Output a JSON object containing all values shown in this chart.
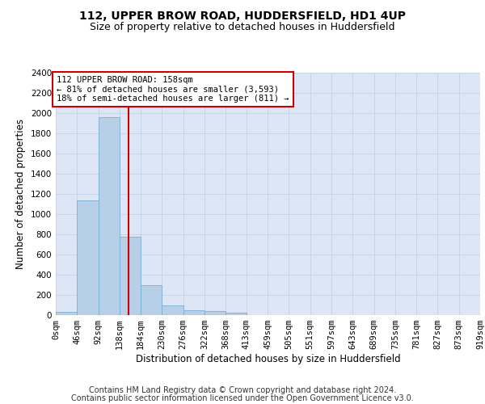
{
  "title": "112, UPPER BROW ROAD, HUDDERSFIELD, HD1 4UP",
  "subtitle": "Size of property relative to detached houses in Huddersfield",
  "xlabel": "Distribution of detached houses by size in Huddersfield",
  "ylabel": "Number of detached properties",
  "bin_edges": [
    0,
    46,
    92,
    138,
    184,
    230,
    276,
    322,
    368,
    413,
    459,
    505,
    551,
    597,
    643,
    689,
    735,
    781,
    827,
    873,
    919
  ],
  "bin_labels": [
    "0sqm",
    "46sqm",
    "92sqm",
    "138sqm",
    "184sqm",
    "230sqm",
    "276sqm",
    "322sqm",
    "368sqm",
    "413sqm",
    "459sqm",
    "505sqm",
    "551sqm",
    "597sqm",
    "643sqm",
    "689sqm",
    "735sqm",
    "781sqm",
    "827sqm",
    "873sqm",
    "919sqm"
  ],
  "bar_heights": [
    35,
    1140,
    1960,
    780,
    300,
    100,
    48,
    40,
    25,
    0,
    0,
    0,
    0,
    0,
    0,
    0,
    0,
    0,
    0,
    0
  ],
  "bar_color": "#b8cfe8",
  "bar_edge_color": "#7aadd4",
  "property_size": 158,
  "red_line_color": "#cc0000",
  "annotation_text": "112 UPPER BROW ROAD: 158sqm\n← 81% of detached houses are smaller (3,593)\n18% of semi-detached houses are larger (811) →",
  "annotation_box_color": "#ffffff",
  "annotation_box_edge": "#cc0000",
  "ylim": [
    0,
    2400
  ],
  "yticks": [
    0,
    200,
    400,
    600,
    800,
    1000,
    1200,
    1400,
    1600,
    1800,
    2000,
    2200,
    2400
  ],
  "grid_color": "#c8d4e8",
  "background_color": "#dce6f5",
  "footer_line1": "Contains HM Land Registry data © Crown copyright and database right 2024.",
  "footer_line2": "Contains public sector information licensed under the Open Government Licence v3.0.",
  "title_fontsize": 10,
  "subtitle_fontsize": 9,
  "axis_label_fontsize": 8.5,
  "tick_fontsize": 7.5,
  "footer_fontsize": 7
}
